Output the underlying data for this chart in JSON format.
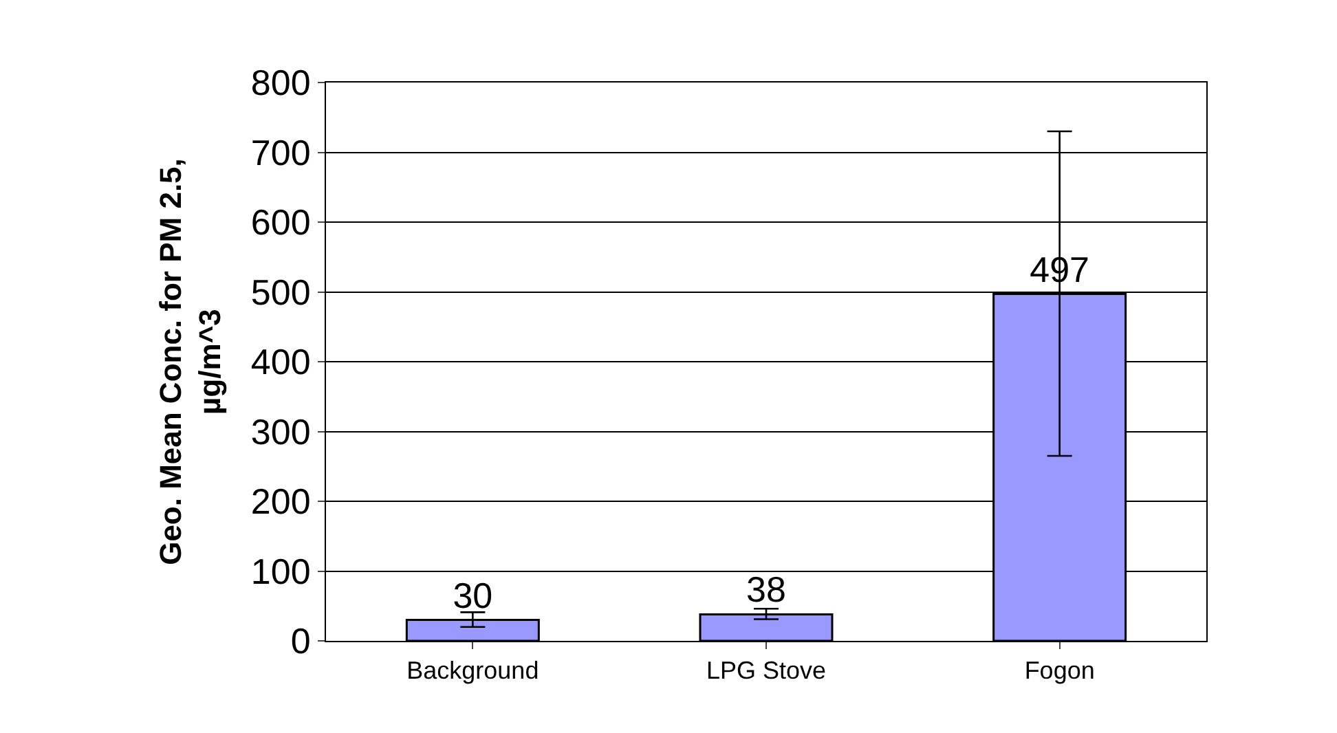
{
  "chart_data": {
    "type": "bar",
    "ylabel": "Geo. Mean Conc. for PM 2.5, µg/m^3",
    "categories": [
      "Background",
      "LPG Stove",
      "Fogon"
    ],
    "values": [
      30,
      38,
      497
    ],
    "color": "#9999ff",
    "errors": [
      [
        20,
        41
      ],
      [
        31,
        46
      ],
      [
        265,
        730
      ]
    ],
    "data_labels": true,
    "ylim": [
      0,
      800
    ],
    "yticks": [
      0,
      100,
      200,
      300,
      400,
      500,
      600,
      700,
      800
    ],
    "grid": "y"
  }
}
